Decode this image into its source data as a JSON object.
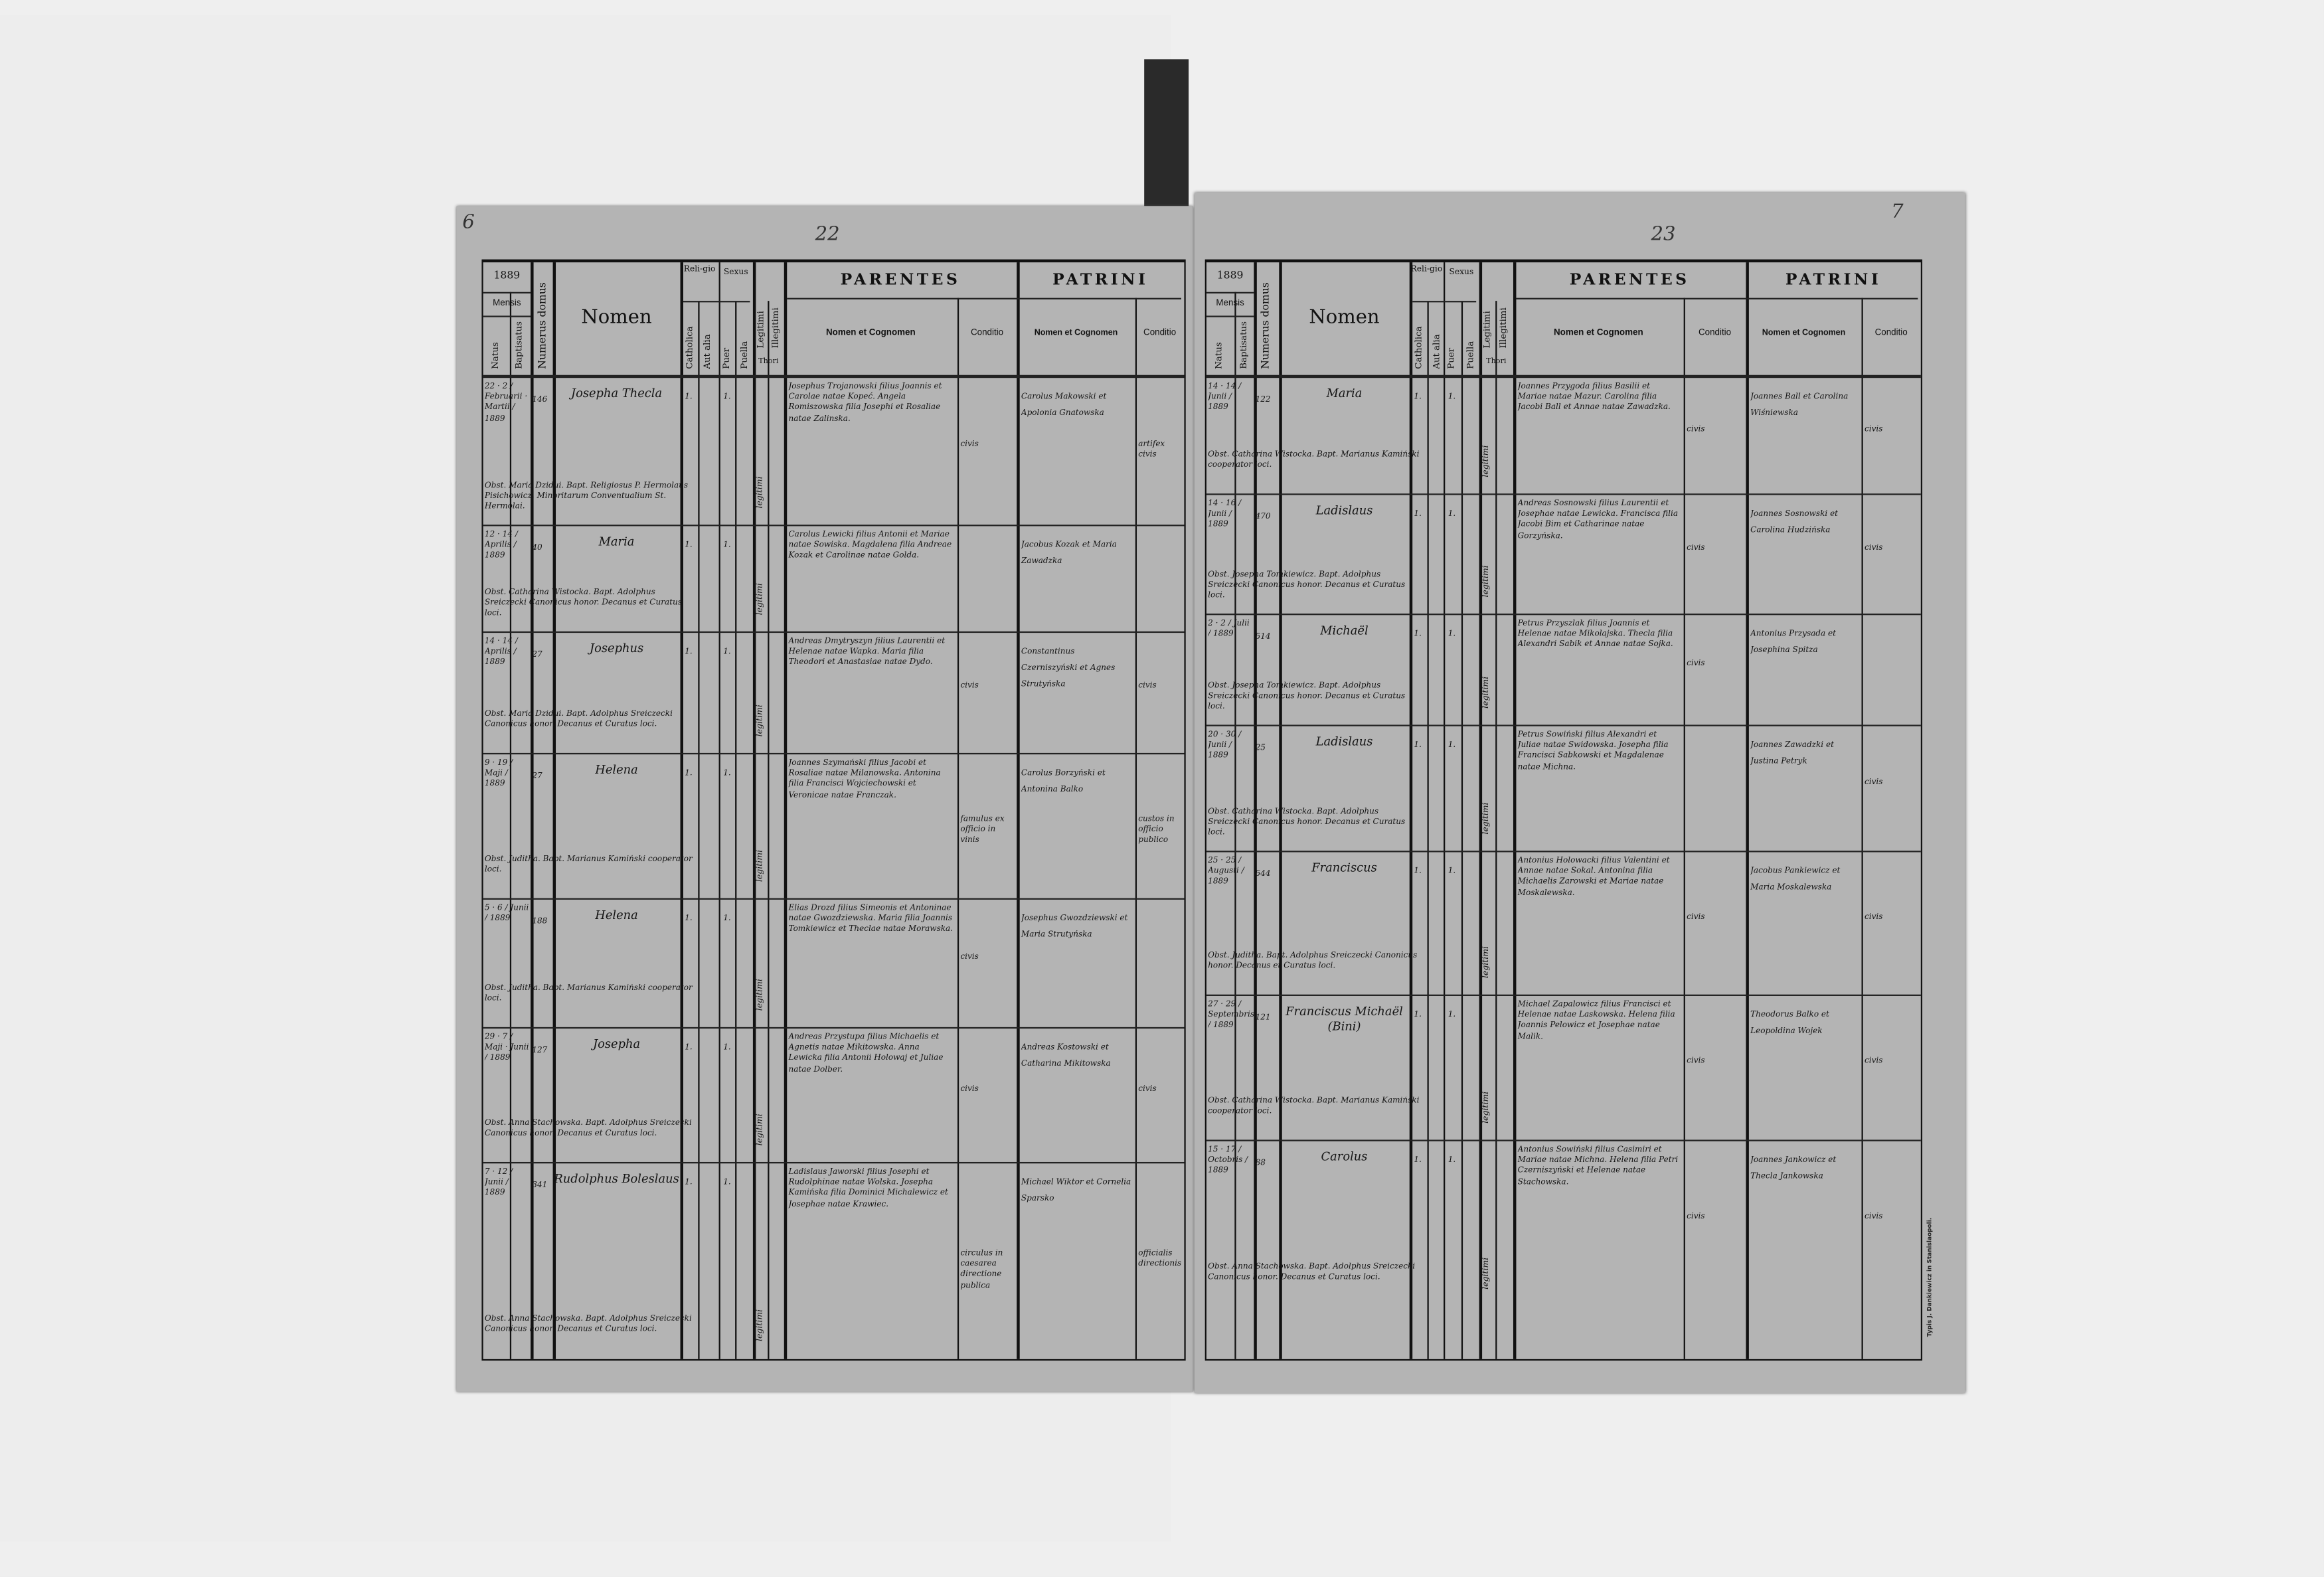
{
  "document": {
    "page_numbers": {
      "left_corner": "6",
      "left_folio": "22",
      "right_folio": "23",
      "right_corner": "7"
    },
    "header": {
      "year": "1889",
      "mensis": "Mensis",
      "natus": "Natus",
      "baptisatus": "Baptisatus",
      "numerus_domus": "Numerus domus",
      "nomen": "Nomen",
      "religio": "Reli-gio",
      "catholica": "Catholica",
      "aut_alia": "Aut alia",
      "sexus": "Sexus",
      "puer": "Puer",
      "puella": "Puella",
      "legitimi": "Legitimi",
      "illegitimi": "Illegitimi",
      "thori": "Thori",
      "parentes": "PARENTES",
      "patrini": "PATRINI",
      "nomen_et_cognomen": "Nomen et Cognomen",
      "conditio": "Conditio"
    },
    "imprint": "Typis J. Dankiewicz in Stanislaopoli.",
    "left_entries": [
      {
        "date": "22 · 2 / Februarii · Martii / 1889",
        "domus": "146",
        "nomen": "Josepha Thecla",
        "religio": "1.",
        "sexus": "1.",
        "legit": "legitimi",
        "parentes": "Josephus Trojanowski filius Joannis et Carolae natae Kopeć. Angela Romiszowska filia Josephi et Rosaliae natae Zalinska.",
        "parentes_conditio": "civis",
        "patrini": "Carolus Makowski et Apolonia Gnatowska",
        "patrini_conditio": "artifex civis",
        "notes": "Obst. Maria Dzidui. Bapt. Religiosus P. Hermolaus Pisichowicz, Minoritarum Conventualium St. Hermolai."
      },
      {
        "date": "12 · 14 / Aprilis / 1889",
        "domus": "40",
        "nomen": "Maria",
        "religio": "1.",
        "sexus": "1.",
        "legit": "legitimi",
        "parentes": "Carolus Lewicki filius Antonii et Mariae natae Sowiska. Magdalena filia Andreae Kozak et Carolinae natae Golda.",
        "parentes_conditio": "",
        "patrini": "Jacobus Kozak et Maria Zawadzka",
        "patrini_conditio": "",
        "notes": "Obst. Catharina Wistocka. Bapt. Adolphus Sreiczecki Canonicus honor. Decanus et Curatus loci."
      },
      {
        "date": "14 · 14 / Aprilis / 1889",
        "domus": "27",
        "nomen": "Josephus",
        "religio": "1.",
        "sexus": "1.",
        "legit": "legitimi",
        "parentes": "Andreas Dmytryszyn filius Laurentii et Helenae natae Wapka. Maria filia Theodori et Anastasiae natae Dydo.",
        "parentes_conditio": "civis",
        "patrini": "Constantinus Czerniszyński et Agnes Strutyńska",
        "patrini_conditio": "civis",
        "notes": "Obst. Maria Dzidui. Bapt. Adolphus Sreiczecki Canonicus honor. Decanus et Curatus loci."
      },
      {
        "date": "9 · 19 / Maji / 1889",
        "domus": "27",
        "nomen": "Helena",
        "religio": "1.",
        "sexus": "1.",
        "legit": "legitimi",
        "parentes": "Joannes Szymański filius Jacobi et Rosaliae natae Milanowska. Antonina filia Francisci Wojciechowski et Veronicae natae Franczak.",
        "parentes_conditio": "famulus ex officio in vinis",
        "patrini": "Carolus Borzyński et Antonina Balko",
        "patrini_conditio": "custos in officio publico",
        "notes": "Obst. Juditha. Bapt. Marianus Kamiński cooperator loci."
      },
      {
        "date": "5 · 6 / Junii / 1889",
        "domus": "188",
        "nomen": "Helena",
        "religio": "1.",
        "sexus": "1.",
        "legit": "legitimi",
        "parentes": "Elias Drozd filius Simeonis et Antoninae natae Gwozdziewska. Maria filia Joannis Tomkiewicz et Theclae natae Morawska.",
        "parentes_conditio": "civis",
        "patrini": "Josephus Gwozdziewski et Maria Strutyńska",
        "patrini_conditio": "",
        "notes": "Obst. Juditha. Bapt. Marianus Kamiński cooperator loci."
      },
      {
        "date": "29 · 7 / Maji · Junii / 1889",
        "domus": "127",
        "nomen": "Josepha",
        "religio": "1.",
        "sexus": "1.",
        "legit": "legitimi",
        "parentes": "Andreas Przystupa filius Michaelis et Agnetis natae Mikitowska. Anna Lewicka filia Antonii Holowaj et Juliae natae Dolber.",
        "parentes_conditio": "civis",
        "patrini": "Andreas Kostowski et Catharina Mikitowska",
        "patrini_conditio": "civis",
        "notes": "Obst. Anna Stachowska. Bapt. Adolphus Sreiczecki Canonicus honor. Decanus et Curatus loci."
      },
      {
        "date": "7 · 12 / Junii / 1889",
        "domus": "341",
        "nomen": "Rudolphus Boleslaus",
        "religio": "1.",
        "sexus": "1.",
        "legit": "legitimi",
        "parentes": "Ladislaus Jaworski filius Josephi et Rudolphinae natae Wolska. Josepha Kamińska filia Dominici Michalewicz et Josephae natae Krawiec.",
        "parentes_conditio": "circulus in caesarea directione publica",
        "patrini": "Michael Wiktor et Cornelia Sparsko",
        "patrini_conditio": "officialis directionis",
        "notes": "Obst. Anna Stachowska. Bapt. Adolphus Sreiczecki Canonicus honor. Decanus et Curatus loci."
      }
    ],
    "right_entries": [
      {
        "date": "14 · 14 / Junii / 1889",
        "domus": "122",
        "nomen": "Maria",
        "religio": "1.",
        "sexus": "1.",
        "legit": "legitimi",
        "parentes": "Joannes Przygoda filius Basilii et Mariae natae Mazur. Carolina filia Jacobi Ball et Annae natae Zawadzka.",
        "parentes_conditio": "civis",
        "patrini": "Joannes Ball et Carolina Wiśniewska",
        "patrini_conditio": "civis",
        "notes": "Obst. Catharina Wistocka. Bapt. Marianus Kamiński cooperator loci."
      },
      {
        "date": "14 · 16 / Junii / 1889",
        "domus": "470",
        "nomen": "Ladislaus",
        "religio": "1.",
        "sexus": "1.",
        "legit": "legitimi",
        "parentes": "Andreas Sosnowski filius Laurentii et Josephae natae Lewicka. Francisca filia Jacobi Bim et Catharinae natae Gorzyńska.",
        "parentes_conditio": "civis",
        "patrini": "Joannes Sosnowski et Carolina Hudzińska",
        "patrini_conditio": "civis",
        "notes": "Obst. Josepha Tomkiewicz. Bapt. Adolphus Sreiczecki Canonicus honor. Decanus et Curatus loci."
      },
      {
        "date": "2 · 2 / Julii / 1889",
        "domus": "514",
        "nomen": "Michaël",
        "religio": "1.",
        "sexus": "1.",
        "legit": "legitimi",
        "parentes": "Petrus Przyszlak filius Joannis et Helenae natae Mikolajska. Thecla filia Alexandri Sabik et Annae natae Sojka.",
        "parentes_conditio": "civis",
        "patrini": "Antonius Przysada et Josephina Spitza",
        "patrini_conditio": "",
        "notes": "Obst. Josepha Tomkiewicz. Bapt. Adolphus Sreiczecki Canonicus honor. Decanus et Curatus loci."
      },
      {
        "date": "20 · 30 / Junii / 1889",
        "domus": "25",
        "nomen": "Ladislaus",
        "religio": "1.",
        "sexus": "1.",
        "legit": "legitimi",
        "parentes": "Petrus Sowiński filius Alexandri et Juliae natae Swidowska. Josepha filia Francisci Sabkowski et Magdalenae natae Michna.",
        "parentes_conditio": "",
        "patrini": "Joannes Zawadzki et Justina Petryk",
        "patrini_conditio": "civis",
        "notes": "Obst. Catharina Wistocka. Bapt. Adolphus Sreiczecki Canonicus honor. Decanus et Curatus loci."
      },
      {
        "date": "25 · 25 / Augusti / 1889",
        "domus": "544",
        "nomen": "Franciscus",
        "religio": "1.",
        "sexus": "1.",
        "legit": "legitimi",
        "parentes": "Antonius Holowacki filius Valentini et Annae natae Sokal. Antonina filia Michaelis Zarowski et Mariae natae Moskalewska.",
        "parentes_conditio": "civis",
        "patrini": "Jacobus Pankiewicz et Maria Moskalewska",
        "patrini_conditio": "civis",
        "notes": "Obst. Juditha. Bapt. Adolphus Sreiczecki Canonicus honor. Decanus et Curatus loci."
      },
      {
        "date": "27 · 29 / Septembris / 1889",
        "domus": "121",
        "nomen": "Franciscus Michaël (Bini)",
        "religio": "1.",
        "sexus": "1.",
        "legit": "legitimi",
        "parentes": "Michael Zapalowicz filius Francisci et Helenae natae Laskowska. Helena filia Joannis Pelowicz et Josephae natae Malik.",
        "parentes_conditio": "civis",
        "patrini": "Theodorus Balko et Leopoldina Wojek",
        "patrini_conditio": "civis",
        "notes": "Obst. Catharina Wistocka. Bapt. Marianus Kamiński cooperator loci."
      },
      {
        "date": "15 · 17 / Octobris / 1889",
        "domus": "88",
        "nomen": "Carolus",
        "religio": "1.",
        "sexus": "1.",
        "legit": "legitimi",
        "parentes": "Antonius Sowiński filius Casimiri et Mariae natae Michna. Helena filia Petri Czerniszyński et Helenae natae Stachowska.",
        "parentes_conditio": "civis",
        "patrini": "Joannes Jankowicz et Thecla Jankowska",
        "patrini_conditio": "civis",
        "notes": "Obst. Anna Stachowska. Bapt. Adolphus Sreiczecki Canonicus honor. Decanus et Curatus loci."
      }
    ]
  }
}
